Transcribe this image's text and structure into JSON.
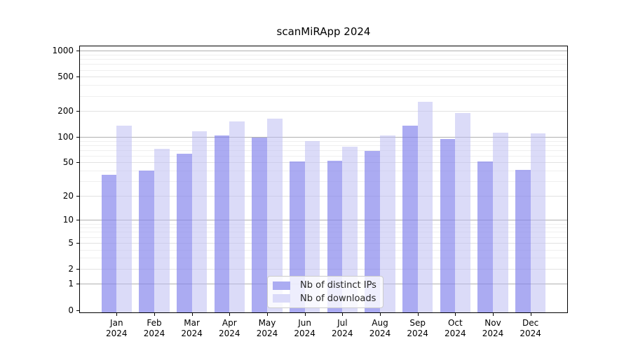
{
  "chart_data": {
    "type": "bar",
    "title": "scanMiRApp 2024",
    "categories": [
      "Jan",
      "Feb",
      "Mar",
      "Apr",
      "May",
      "Jun",
      "Jul",
      "Aug",
      "Sep",
      "Oct",
      "Nov",
      "Dec"
    ],
    "x_year_label": "2024",
    "series": [
      {
        "name": "Nb of distinct IPs",
        "color_rgba": "rgba(130,130,236,0.67)",
        "swatch_hex": "#abacf2",
        "values": [
          36,
          40,
          63,
          103,
          99,
          51,
          52,
          69,
          136,
          95,
          51,
          41
        ]
      },
      {
        "name": "Nb of downloads",
        "color_rgba": "rgba(190,190,243,0.55)",
        "swatch_hex": "#dadaf9",
        "values": [
          135,
          73,
          116,
          150,
          163,
          90,
          77,
          103,
          258,
          191,
          112,
          109
        ]
      }
    ],
    "y_scale": "log10(1+v)",
    "y_ticks": [
      0,
      1,
      2,
      5,
      10,
      20,
      50,
      100,
      200,
      500,
      1000
    ],
    "y_major_gridlines": [
      1,
      10,
      100,
      1000
    ],
    "y_medium_gridlines": [
      2,
      5,
      20,
      50,
      200,
      500
    ],
    "y_minor_gridlines": [
      3,
      4,
      6,
      7,
      8,
      9,
      30,
      40,
      60,
      70,
      80,
      90,
      300,
      400,
      600,
      700,
      800,
      900
    ],
    "ylim": [
      0,
      1150
    ],
    "grid": true,
    "legend_position": "inside-bottom-center",
    "colors": {
      "grid_major": "#b0b0b0",
      "grid_minor": "#efefef",
      "axis": "#000000",
      "background": "#ffffff"
    }
  }
}
